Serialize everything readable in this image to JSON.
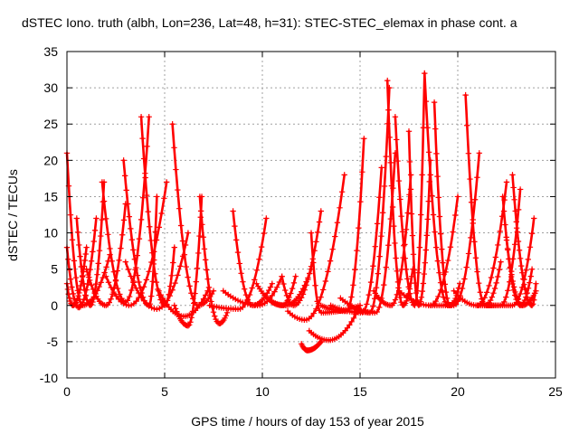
{
  "chart_data": {
    "type": "scatter",
    "title": "dSTEC Iono. truth (albh, Lon=236, Lat=48, h=31): STEC-STEC_elemax in phase cont. a",
    "xlabel": "GPS time / hours of day 153 of year 2015",
    "ylabel": "dSTEC  / TECUs",
    "xlim": [
      0,
      25
    ],
    "ylim": [
      -10,
      35
    ],
    "xticks": [
      0,
      5,
      10,
      15,
      20,
      25
    ],
    "yticks": [
      -10,
      -5,
      0,
      5,
      10,
      15,
      20,
      25,
      30,
      35
    ],
    "grid": true,
    "marker": "+",
    "series_color": "#ff0000",
    "arcs": [
      {
        "t_start": 0.0,
        "t_min": 0.8,
        "t_end": 2.2,
        "y_start": 21,
        "y_min": 0,
        "y_end": 7
      },
      {
        "t_start": 0.0,
        "t_min": 0.6,
        "t_end": 1.5,
        "y_start": 8,
        "y_min": -0.3,
        "y_end": 12
      },
      {
        "t_start": 0.0,
        "t_min": 0.3,
        "t_end": 1.0,
        "y_start": 3,
        "y_min": 0,
        "y_end": 8
      },
      {
        "t_start": 0.5,
        "t_min": 1.2,
        "t_end": 1.9,
        "y_start": 12,
        "y_min": 0,
        "y_end": 17
      },
      {
        "t_start": 1.0,
        "t_min": 2.0,
        "t_end": 3.0,
        "y_start": 5,
        "y_min": 0,
        "y_end": 14
      },
      {
        "t_start": 1.8,
        "t_min": 3.0,
        "t_end": 4.2,
        "y_start": 17,
        "y_min": 0.5,
        "y_end": 26
      },
      {
        "t_start": 2.9,
        "t_min": 4.2,
        "t_end": 4.6,
        "y_start": 20,
        "y_min": 0,
        "y_end": 15
      },
      {
        "t_start": 3.8,
        "t_min": 5.0,
        "t_end": 5.5,
        "y_start": 26,
        "y_min": 0,
        "y_end": 8
      },
      {
        "t_start": 2.0,
        "t_min": 3.2,
        "t_end": 5.1,
        "y_start": 4,
        "y_min": 0,
        "y_end": 17
      },
      {
        "t_start": 3.0,
        "t_min": 4.6,
        "t_end": 6.2,
        "y_start": 6,
        "y_min": -0.5,
        "y_end": 10
      },
      {
        "t_start": 5.4,
        "t_min": 6.7,
        "t_end": 7.5,
        "y_start": 25,
        "y_min": 0,
        "y_end": 2
      },
      {
        "t_start": 5.5,
        "t_min": 6.2,
        "t_end": 6.9,
        "y_start": 0,
        "y_min": -2.8,
        "y_end": 15
      },
      {
        "t_start": 6.8,
        "t_min": 7.8,
        "t_end": 8.2,
        "y_start": 15,
        "y_min": -2.5,
        "y_end": -1
      },
      {
        "t_start": 4.7,
        "t_min": 6.0,
        "t_end": 7.2,
        "y_start": 2,
        "y_min": -1.5,
        "y_end": 2
      },
      {
        "t_start": 7.3,
        "t_min": 8.8,
        "t_end": 10.2,
        "y_start": 0,
        "y_min": -0.5,
        "y_end": 12
      },
      {
        "t_start": 8.5,
        "t_min": 9.5,
        "t_end": 10.5,
        "y_start": 13,
        "y_min": 0,
        "y_end": 3
      },
      {
        "t_start": 8.0,
        "t_min": 9.8,
        "t_end": 11.0,
        "y_start": 2,
        "y_min": 0,
        "y_end": 4
      },
      {
        "t_start": 9.7,
        "t_min": 11.0,
        "t_end": 11.7,
        "y_start": 3,
        "y_min": 0,
        "y_end": 4
      },
      {
        "t_start": 11.0,
        "t_min": 11.6,
        "t_end": 13.0,
        "y_start": 4,
        "y_min": 0,
        "y_end": 13
      },
      {
        "t_start": 10.5,
        "t_min": 11.2,
        "t_end": 12.5,
        "y_start": 0.5,
        "y_min": 0,
        "y_end": 5
      },
      {
        "t_start": 11.3,
        "t_min": 12.2,
        "t_end": 14.2,
        "y_start": -0.8,
        "y_min": -2,
        "y_end": 18
      },
      {
        "t_start": 12.0,
        "t_min": 12.3,
        "t_end": 13.0,
        "y_start": -5.3,
        "y_min": -6.2,
        "y_end": -5
      },
      {
        "t_start": 12.4,
        "t_min": 13.4,
        "t_end": 15.0,
        "y_start": -3.5,
        "y_min": -4.8,
        "y_end": 0
      },
      {
        "t_start": 13.0,
        "t_min": 14.3,
        "t_end": 15.2,
        "y_start": 0,
        "y_min": -0.8,
        "y_end": 23
      },
      {
        "t_start": 12.5,
        "t_min": 13.0,
        "t_end": 15.0,
        "y_start": 10,
        "y_min": -1,
        "y_end": 0
      },
      {
        "t_start": 13.5,
        "t_min": 15.1,
        "t_end": 16.1,
        "y_start": 0,
        "y_min": -1,
        "y_end": 19
      },
      {
        "t_start": 14.5,
        "t_min": 15.5,
        "t_end": 16.5,
        "y_start": 0,
        "y_min": -1,
        "y_end": 30
      },
      {
        "t_start": 14.0,
        "t_min": 15.8,
        "t_end": 16.8,
        "y_start": 1,
        "y_min": -1,
        "y_end": 21
      },
      {
        "t_start": 16.4,
        "t_min": 17.2,
        "t_end": 17.7,
        "y_start": 31,
        "y_min": 0,
        "y_end": 5
      },
      {
        "t_start": 16.8,
        "t_min": 17.8,
        "t_end": 18.3,
        "y_start": 26,
        "y_min": 0,
        "y_end": 32
      },
      {
        "t_start": 15.7,
        "t_min": 16.6,
        "t_end": 17.6,
        "y_start": 2,
        "y_min": 0,
        "y_end": 18
      },
      {
        "t_start": 17.5,
        "t_min": 18.0,
        "t_end": 18.6,
        "y_start": 24,
        "y_min": 0,
        "y_end": 20
      },
      {
        "t_start": 18.3,
        "t_min": 19.5,
        "t_end": 20.1,
        "y_start": 32,
        "y_min": 0,
        "y_end": 1
      },
      {
        "t_start": 18.8,
        "t_min": 19.6,
        "t_end": 20.1,
        "y_start": 28,
        "y_min": 0,
        "y_end": 3
      },
      {
        "t_start": 17.0,
        "t_min": 18.6,
        "t_end": 20.0,
        "y_start": 2,
        "y_min": 0,
        "y_end": 15
      },
      {
        "t_start": 18.5,
        "t_min": 19.8,
        "t_end": 21.1,
        "y_start": 0,
        "y_min": 0,
        "y_end": 21
      },
      {
        "t_start": 20.4,
        "t_min": 21.4,
        "t_end": 22.2,
        "y_start": 29,
        "y_min": 0,
        "y_end": 6
      },
      {
        "t_start": 19.8,
        "t_min": 21.0,
        "t_end": 22.5,
        "y_start": 2,
        "y_min": 0,
        "y_end": 17
      },
      {
        "t_start": 21.0,
        "t_min": 22.2,
        "t_end": 23.2,
        "y_start": 0,
        "y_min": 0,
        "y_end": 16
      },
      {
        "t_start": 22.3,
        "t_min": 23.2,
        "t_end": 23.8,
        "y_start": 15,
        "y_min": 0,
        "y_end": 5
      },
      {
        "t_start": 22.8,
        "t_min": 23.8,
        "t_end": 24.0,
        "y_start": 18,
        "y_min": 0,
        "y_end": 3
      },
      {
        "t_start": 21.5,
        "t_min": 22.8,
        "t_end": 23.9,
        "y_start": 0,
        "y_min": 0,
        "y_end": 12
      },
      {
        "t_start": 22.5,
        "t_min": 23.3,
        "t_end": 24.0,
        "y_start": 9,
        "y_min": 0,
        "y_end": 2
      }
    ]
  }
}
